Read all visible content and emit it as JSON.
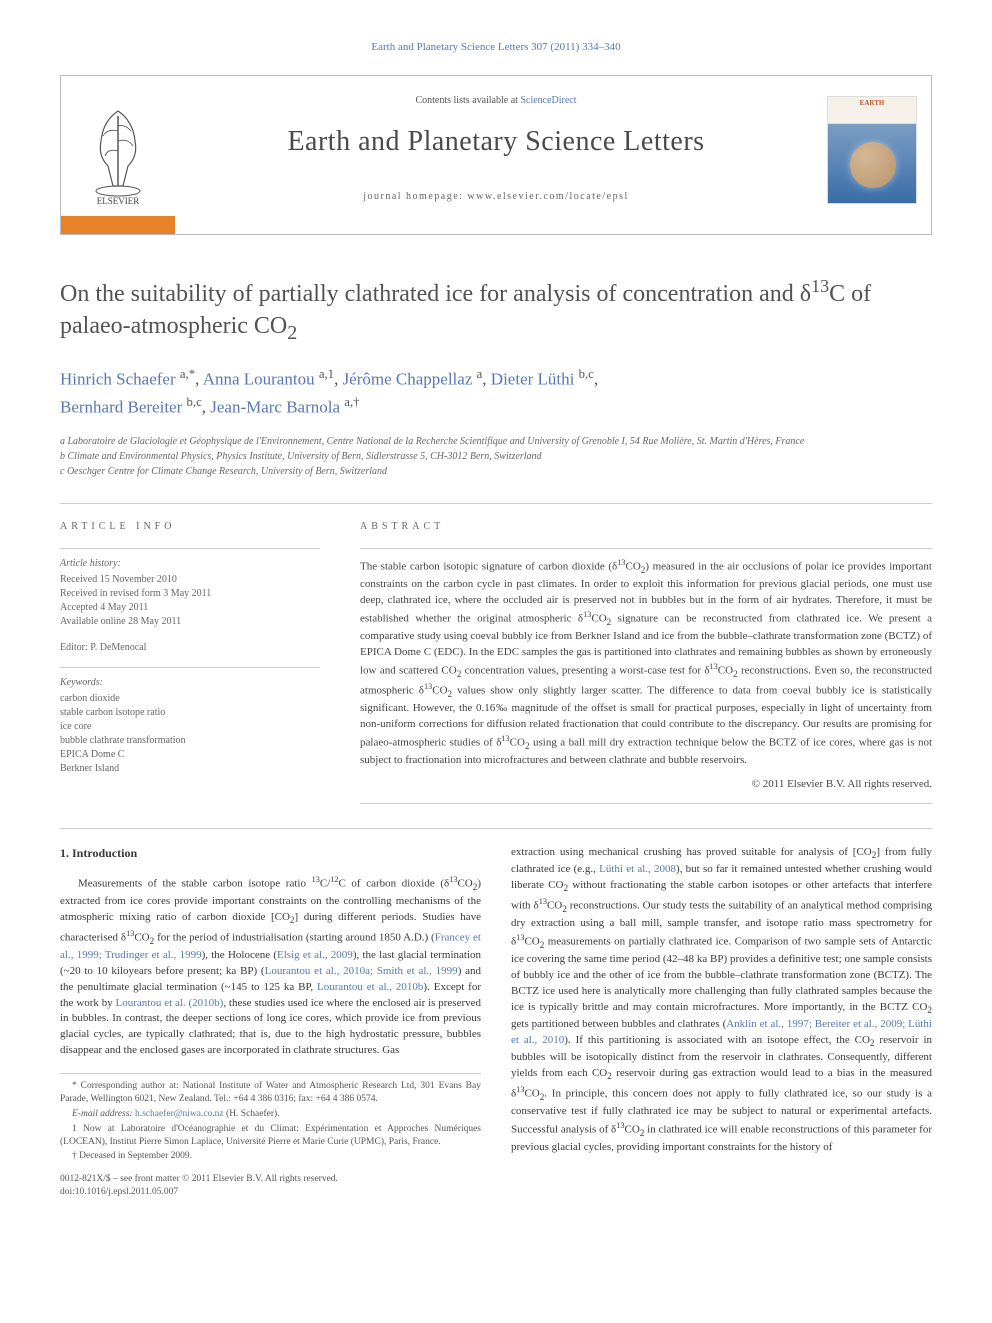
{
  "top_citation": "Earth and Planetary Science Letters 307 (2011) 334–340",
  "header": {
    "contents_prefix": "Contents lists available at ",
    "contents_link": "ScienceDirect",
    "journal_title": "Earth and Planetary Science Letters",
    "homepage_label": "journal homepage: www.elsevier.com/locate/epsl",
    "elsevier_name": "ELSEVIER",
    "logo_text": "EARTH"
  },
  "article": {
    "title_html": "On the suitability of partially clathrated ice for analysis of concentration and δ<sup>13</sup>C of palaeo-atmospheric CO<sub>2</sub>",
    "authors_html": "<a href=\"#\">Hinrich Schaefer</a> <sup>a,*</sup>, <a href=\"#\">Anna Lourantou</a> <sup>a,1</sup>, <a href=\"#\">Jérôme Chappellaz</a> <sup>a</sup>, <a href=\"#\">Dieter Lüthi</a> <sup>b,c</sup>,<br><a href=\"#\">Bernhard Bereiter</a> <sup>b,c</sup>, <a href=\"#\">Jean-Marc Barnola</a> <sup>a,†</sup>",
    "affiliations": [
      "a Laboratoire de Glaciologie et Géophysique de l'Environnement, Centre National de la Recherche Scientifique and University of Grenoble I, 54 Rue Molière, St. Martin d'Hères, France",
      "b Climate and Environmental Physics, Physics Institute, University of Bern, Sidlerstrasse 5, CH-3012 Bern, Switzerland",
      "c Oeschger Centre for Climate Change Research, University of Bern, Switzerland"
    ]
  },
  "info": {
    "heading": "ARTICLE INFO",
    "history_label": "Article history:",
    "history": [
      "Received 15 November 2010",
      "Received in revised form 3 May 2011",
      "Accepted 4 May 2011",
      "Available online 28 May 2011"
    ],
    "editor": "Editor: P. DeMenocal",
    "keywords_label": "Keywords:",
    "keywords": [
      "carbon dioxide",
      "stable carbon isotope ratio",
      "ice core",
      "bubble clathrate transformation",
      "EPICA Dome C",
      "Berkner Island"
    ]
  },
  "abstract": {
    "heading": "ABSTRACT",
    "text_html": "The stable carbon isotopic signature of carbon dioxide (δ<sup>13</sup>CO<sub>2</sub>) measured in the air occlusions of polar ice provides important constraints on the carbon cycle in past climates. In order to exploit this information for previous glacial periods, one must use deep, clathrated ice, where the occluded air is preserved not in bubbles but in the form of air hydrates. Therefore, it must be established whether the original atmospheric δ<sup>13</sup>CO<sub>2</sub> signature can be reconstructed from clathrated ice. We present a comparative study using coeval bubbly ice from Berkner Island and ice from the bubble–clathrate transformation zone (BCTZ) of EPICA Dome C (EDC). In the EDC samples the gas is partitioned into clathrates and remaining bubbles as shown by erroneously low and scattered CO<sub>2</sub> concentration values, presenting a worst-case test for δ<sup>13</sup>CO<sub>2</sub> reconstructions. Even so, the reconstructed atmospheric δ<sup>13</sup>CO<sub>2</sub> values show only slightly larger scatter. The difference to data from coeval bubbly ice is statistically significant. However, the 0.16‰ magnitude of the offset is small for practical purposes, especially in light of uncertainty from non-uniform corrections for diffusion related fractionation that could contribute to the discrepancy. Our results are promising for palaeo-atmospheric studies of δ<sup>13</sup>CO<sub>2</sub> using a ball mill dry extraction technique below the BCTZ of ice cores, where gas is not subject to fractionation into microfractures and between clathrate and bubble reservoirs.",
    "copyright": "© 2011 Elsevier B.V. All rights reserved."
  },
  "body": {
    "heading": "1. Introduction",
    "col1_html": "Measurements of the stable carbon isotope ratio <sup>13</sup>C/<sup>12</sup>C of carbon dioxide (δ<sup>13</sup>CO<sub>2</sub>) extracted from ice cores provide important constraints on the controlling mechanisms of the atmospheric mixing ratio of carbon dioxide [CO<sub>2</sub>] during different periods. Studies have characterised δ<sup>13</sup>CO<sub>2</sub> for the period of industrialisation (starting around 1850 A.D.) (<a href=\"#\">Francey et al., 1999; Trudinger et al., 1999</a>), the Holocene (<a href=\"#\">Elsig et al., 2009</a>), the last glacial termination (~20 to 10 kiloyears before present; ka BP) (<a href=\"#\">Lourantou et al., 2010a; Smith et al., 1999</a>) and the penultimate glacial termination (~145 to 125 ka BP, <a href=\"#\">Lourantou et al., 2010b</a>). Except for the work by <a href=\"#\">Lourantou et al. (2010b)</a>, these studies used ice where the enclosed air is preserved in bubbles. In contrast, the deeper sections of long ice cores, which provide ice from previous glacial cycles, are typically clathrated; that is, due to the high hydrostatic pressure, bubbles disappear and the enclosed gases are incorporated in clathrate structures. Gas",
    "col2_html": "extraction using mechanical crushing has proved suitable for analysis of [CO<sub>2</sub>] from fully clathrated ice (e.g., <a href=\"#\">Lüthi et al., 2008</a>), but so far it remained untested whether crushing would liberate CO<sub>2</sub> without fractionating the stable carbon isotopes or other artefacts that interfere with δ<sup>13</sup>CO<sub>2</sub> reconstructions. Our study tests the suitability of an analytical method comprising dry extraction using a ball mill, sample transfer, and isotope ratio mass spectrometry for δ<sup>13</sup>CO<sub>2</sub> measurements on partially clathrated ice. Comparison of two sample sets of Antarctic ice covering the same time period (42–48 ka BP) provides a definitive test; one sample consists of bubbly ice and the other of ice from the bubble–clathrate transformation zone (BCTZ). The BCTZ ice used here is analytically more challenging than fully clathrated samples because the ice is typically brittle and may contain microfractures. More importantly, in the BCTZ CO<sub>2</sub> gets partitioned between bubbles and clathrates (<a href=\"#\">Anklin et al., 1997; Bereiter et al., 2009; Lüthi et al., 2010</a>). If this partitioning is associated with an isotope effect, the CO<sub>2</sub> reservoir in bubbles will be isotopically distinct from the reservoir in clathrates. Consequently, different yields from each CO<sub>2</sub> reservoir during gas extraction would lead to a bias in the measured δ<sup>13</sup>CO<sub>2</sub>. In principle, this concern does not apply to fully clathrated ice, so our study is a conservative test if fully clathrated ice may be subject to natural or experimental artefacts. Successful analysis of δ<sup>13</sup>CO<sub>2</sub> in clathrated ice will enable reconstructions of this parameter for previous glacial cycles, providing important constraints for the history of"
  },
  "footnotes": {
    "corr_html": "* Corresponding author at: National Institute of Water and Atmospheric Research Ltd, 301 Evans Bay Parade, Wellington 6021, New Zealand. Tel.: +64 4 386 0316; fax: +64 4 386 0574.",
    "email_label": "E-mail address: ",
    "email": "h.schaefer@niwa.co.nz",
    "email_suffix": " (H. Schaefer).",
    "note1": "1 Now at Laboratoire d'Océanographie et du Climat: Expérimentation et Approches Numériques (LOCEAN), Institut Pierre Simon Laplace, Université Pierre et Marie Curie (UPMC), Paris, France.",
    "note2": "† Deceased in September 2009."
  },
  "bottom": {
    "line1": "0012-821X/$ – see front matter © 2011 Elsevier B.V. All rights reserved.",
    "line2": "doi:10.1016/j.epsl.2011.05.007"
  },
  "colors": {
    "link": "#5878b0",
    "elsevier_orange": "#e8822a",
    "text": "#3a3a3a",
    "muted": "#666666",
    "border": "#cccccc"
  }
}
